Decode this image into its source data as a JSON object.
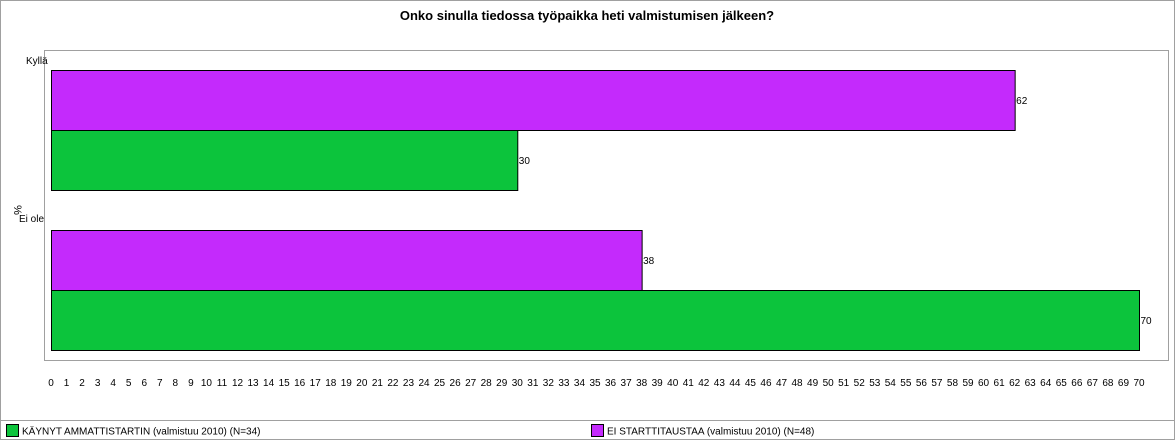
{
  "chart_data": {
    "type": "bar",
    "orientation": "horizontal",
    "title": "Onko sinulla tiedossa työpaikka heti valmistumisen jälkeen?",
    "xlabel": "",
    "ylabel": "%",
    "categories": [
      "Kyllä",
      "Ei ole"
    ],
    "series": [
      {
        "name": "EI STARTTITAUSTAA (valmistuu 2010) (N=48)",
        "values": [
          62,
          38
        ],
        "color": "#c42afc"
      },
      {
        "name": "KÄYNYT AMMATTISTARTIN (valmistuu 2010) (N=34)",
        "values": [
          30,
          70
        ],
        "color": "#0cc43c"
      }
    ],
    "xlim": [
      0,
      70
    ],
    "x_ticks": [
      0,
      1,
      2,
      3,
      4,
      5,
      6,
      7,
      8,
      9,
      10,
      11,
      12,
      13,
      14,
      15,
      16,
      17,
      18,
      19,
      20,
      21,
      22,
      23,
      24,
      25,
      26,
      27,
      28,
      29,
      30,
      31,
      32,
      33,
      34,
      35,
      36,
      37,
      38,
      39,
      40,
      41,
      42,
      43,
      44,
      45,
      46,
      47,
      48,
      49,
      50,
      51,
      52,
      53,
      54,
      55,
      56,
      57,
      58,
      59,
      60,
      61,
      62,
      63,
      64,
      65,
      66,
      67,
      68,
      69,
      70
    ],
    "grid": false,
    "legend": {
      "position": "bottom",
      "entries": [
        {
          "label": "KÄYNYT AMMATTISTARTIN (valmistuu 2010) (N=34)",
          "color": "#0cc43c"
        },
        {
          "label": "EI STARTTITAUSTAA (valmistuu 2010) (N=48)",
          "color": "#c42afc"
        }
      ]
    },
    "data_labels": true
  }
}
